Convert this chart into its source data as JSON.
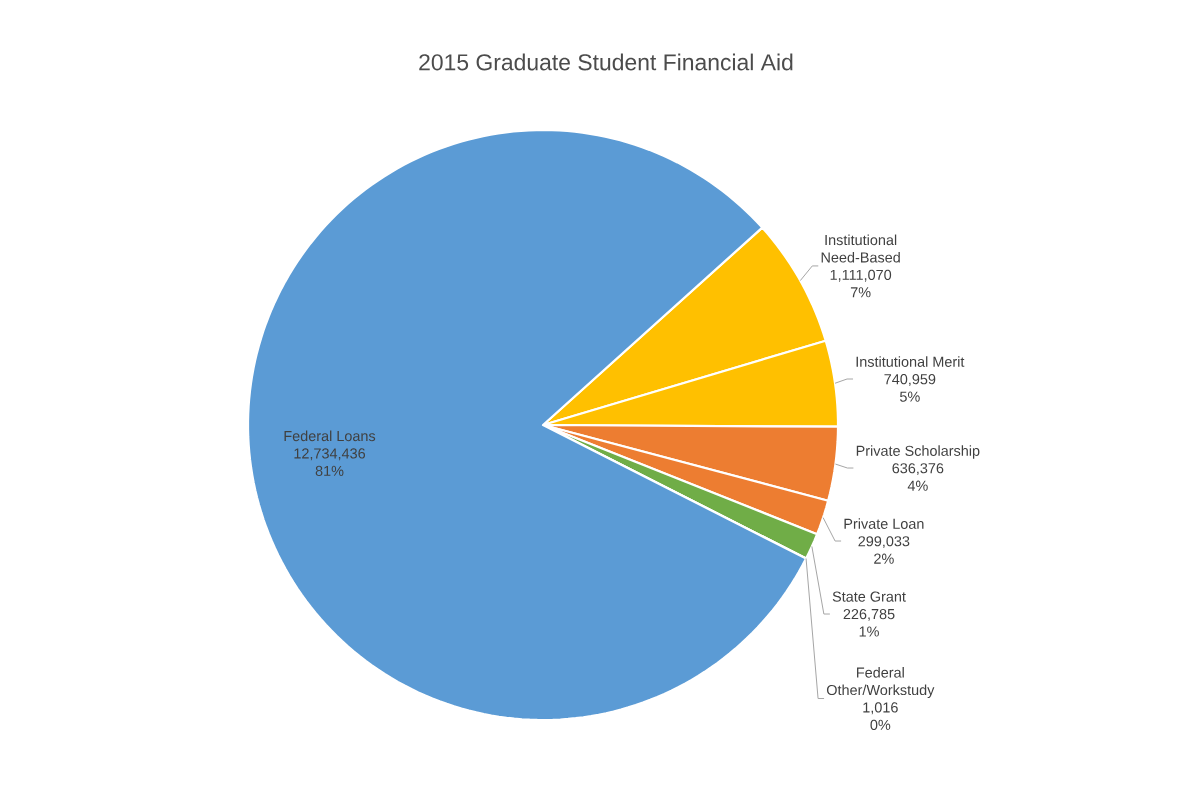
{
  "chart_data": {
    "type": "pie",
    "title": "2015 Graduate Student Financial Aid",
    "categories": [
      "Institutional Need-Based",
      "Institutional Merit",
      "Private Scholarship",
      "Private Loan",
      "State Grant",
      "Federal Other/Workstudy",
      "Federal Loans"
    ],
    "values": [
      1111070,
      740959,
      636376,
      299033,
      226785,
      1016,
      12734436
    ],
    "colors": [
      "#ffc000",
      "#ffc000",
      "#ed7d31",
      "#ed7d31",
      "#70ad47",
      "#5b9bd5",
      "#5b9bd5"
    ],
    "value_labels": [
      "1,111,070",
      "740,959",
      "636,376",
      "299,033",
      "226,785",
      "1,016",
      "12,734,436"
    ],
    "annotations": [
      "7%",
      "5%",
      "4%",
      "2%",
      "1%",
      "0%",
      "81%"
    ]
  }
}
